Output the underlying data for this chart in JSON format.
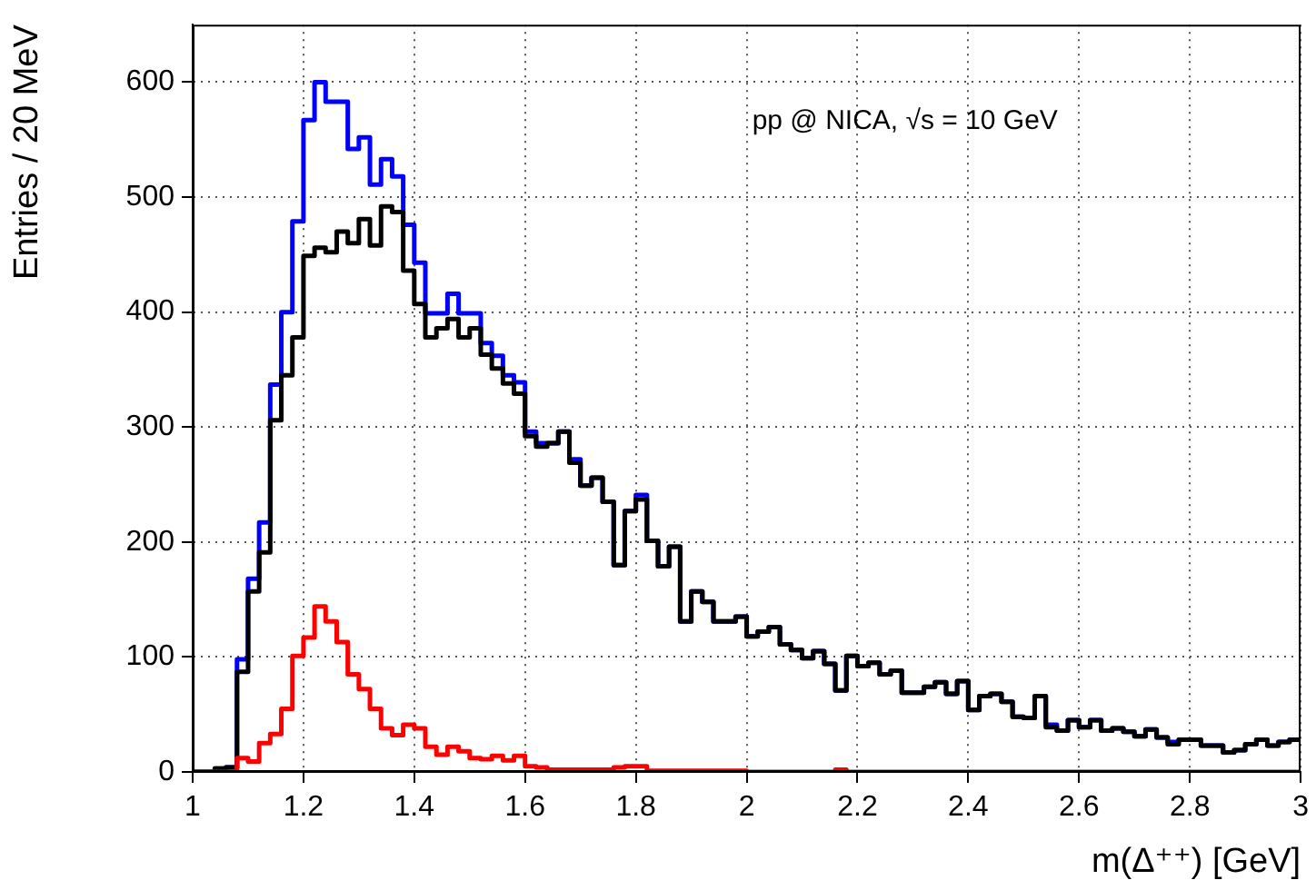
{
  "chart_data": {
    "type": "histogram",
    "xlabel": "m(Δ⁺⁺) [GeV]",
    "ylabel": "Entries / 20 MeV",
    "annotations": [
      "pp @ NICA, √s = 10 GeV"
    ],
    "bins": [
      1.0,
      1.02,
      1.04,
      1.06,
      1.08,
      1.1,
      1.12,
      1.14,
      1.16,
      1.18,
      1.2,
      1.22,
      1.24,
      1.26,
      1.28,
      1.3,
      1.32,
      1.34,
      1.36,
      1.38,
      1.4,
      1.42,
      1.44,
      1.46,
      1.48,
      1.5,
      1.52,
      1.54,
      1.56,
      1.58,
      1.6,
      1.62,
      1.64,
      1.66,
      1.68,
      1.7,
      1.72,
      1.74,
      1.76,
      1.78,
      1.8,
      1.82,
      1.84,
      1.86,
      1.88,
      1.9,
      1.92,
      1.94,
      1.96,
      1.98,
      2.0,
      2.02,
      2.04,
      2.06,
      2.08,
      2.1,
      2.12,
      2.14,
      2.16,
      2.18,
      2.2,
      2.22,
      2.24,
      2.26,
      2.28,
      2.3,
      2.32,
      2.34,
      2.36,
      2.38,
      2.4,
      2.42,
      2.44,
      2.46,
      2.48,
      2.5,
      2.52,
      2.54,
      2.56,
      2.58,
      2.6,
      2.62,
      2.64,
      2.66,
      2.68,
      2.7,
      2.72,
      2.74,
      2.76,
      2.78,
      2.8,
      2.82,
      2.84,
      2.86,
      2.88,
      2.9,
      2.92,
      2.94,
      2.96,
      2.98,
      3.0
    ],
    "series": [
      {
        "color": "#0000ff",
        "values": [
          0,
          0,
          3,
          4,
          98,
          168,
          217,
          337,
          400,
          479,
          567,
          600,
          583,
          583,
          542,
          552,
          511,
          533,
          518,
          476,
          443,
          399,
          399,
          416,
          399,
          399,
          373,
          362,
          345,
          339,
          296,
          286,
          286,
          296,
          272,
          249,
          256,
          235,
          180,
          227,
          241,
          201,
          179,
          196,
          131,
          157,
          148,
          131,
          131,
          135,
          118,
          122,
          126,
          111,
          106,
          99,
          105,
          94,
          71,
          101,
          92,
          95,
          85,
          88,
          69,
          69,
          74,
          78,
          68,
          79,
          54,
          66,
          68,
          61,
          48,
          47,
          66,
          41,
          36,
          45,
          39,
          45,
          36,
          38,
          35,
          31,
          37,
          30,
          26,
          28,
          28,
          23,
          23,
          17,
          19,
          24,
          28,
          23,
          26,
          28
        ]
      },
      {
        "color": "#000000",
        "values": [
          0,
          0,
          3,
          4,
          87,
          157,
          191,
          306,
          345,
          378,
          449,
          456,
          452,
          470,
          460,
          481,
          458,
          492,
          487,
          436,
          407,
          378,
          386,
          394,
          378,
          386,
          363,
          351,
          338,
          329,
          292,
          283,
          286,
          296,
          269,
          249,
          256,
          235,
          180,
          227,
          237,
          201,
          179,
          196,
          131,
          157,
          148,
          131,
          131,
          135,
          118,
          122,
          126,
          111,
          106,
          99,
          105,
          94,
          71,
          101,
          92,
          95,
          85,
          88,
          69,
          69,
          74,
          78,
          68,
          79,
          54,
          66,
          68,
          61,
          48,
          47,
          66,
          39,
          36,
          45,
          39,
          45,
          36,
          38,
          35,
          31,
          37,
          30,
          24,
          28,
          28,
          23,
          23,
          17,
          19,
          24,
          28,
          23,
          26,
          28
        ]
      },
      {
        "color": "#ff0000",
        "values": [
          0,
          0,
          0,
          0,
          12,
          9,
          25,
          33,
          55,
          101,
          117,
          144,
          131,
          113,
          85,
          72,
          55,
          38,
          32,
          41,
          38,
          22,
          15,
          22,
          18,
          12,
          11,
          14,
          10,
          14,
          5,
          4,
          2,
          2,
          2,
          2,
          2,
          2,
          4,
          5,
          5,
          1,
          1,
          1,
          1,
          1,
          1,
          1,
          1,
          1,
          0,
          0,
          0,
          0,
          0,
          0,
          0,
          0,
          2,
          0,
          0,
          0,
          0,
          0,
          0,
          0,
          0,
          0,
          0,
          0,
          0,
          0,
          0,
          0,
          0,
          0,
          0,
          0,
          0,
          0,
          0,
          0,
          0,
          0,
          0,
          0,
          0,
          0,
          0,
          0,
          0,
          0,
          0,
          0,
          0,
          0,
          0,
          0,
          0,
          0
        ]
      }
    ],
    "xlim": [
      1,
      3
    ],
    "xticks": [
      1,
      1.2,
      1.4,
      1.6,
      1.8,
      2,
      2.2,
      2.4,
      2.6,
      2.8,
      3
    ],
    "ylim": [
      0,
      650
    ],
    "yticks": [
      0,
      100,
      200,
      300,
      400,
      500,
      600
    ],
    "grid": true,
    "legend": false,
    "line_style": "solid",
    "marker": "none"
  }
}
